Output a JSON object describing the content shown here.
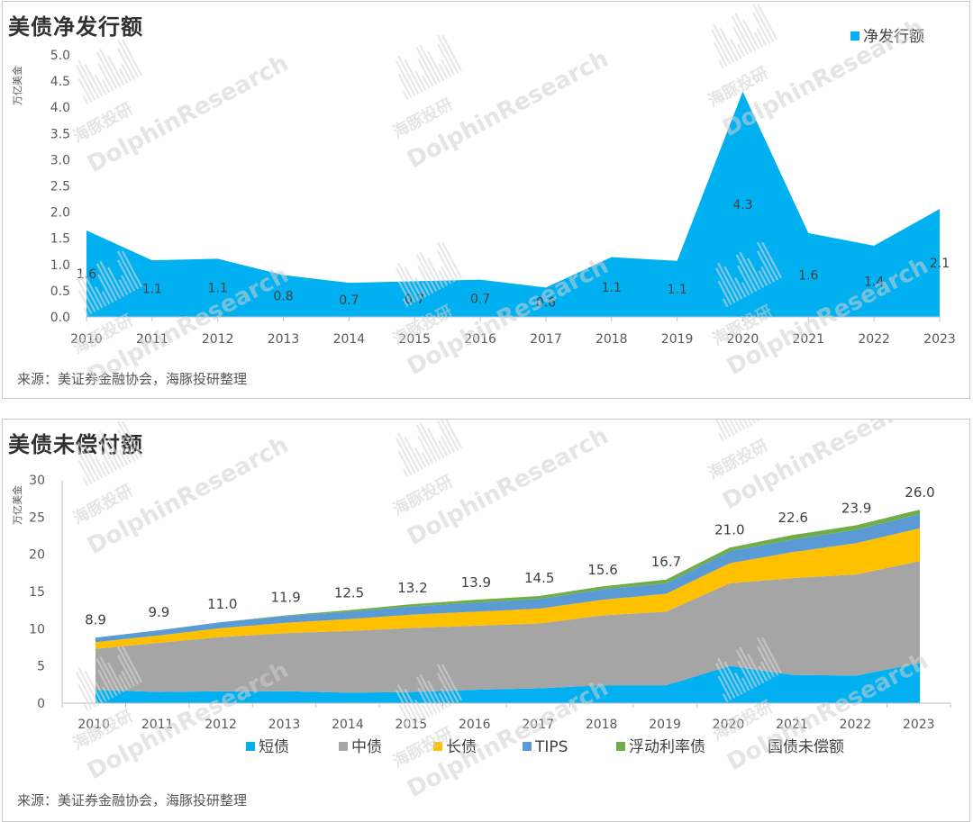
{
  "charts": [
    {
      "title": "美债净发行额",
      "source": "来源：美证券金融协会，海豚投研整理",
      "unit": "万亿美金"
    },
    {
      "title": "美债未偿付额",
      "source": "来源：美证券金融协会，海豚投研整理",
      "unit": "万亿美金"
    }
  ],
  "watermark": {
    "cn": "海豚投研",
    "en": "DolphinResearch"
  },
  "chart_data": [
    {
      "type": "area",
      "title": "美债净发行额",
      "ylabel": "万亿美金",
      "ylim": [
        0,
        5.0
      ],
      "yticks": [
        "0.0",
        "0.5",
        "1.0",
        "1.5",
        "2.0",
        "2.5",
        "3.0",
        "3.5",
        "4.0",
        "4.5",
        "5.0"
      ],
      "categories": [
        "2010",
        "2011",
        "2012",
        "2013",
        "2014",
        "2015",
        "2016",
        "2017",
        "2018",
        "2019",
        "2020",
        "2021",
        "2022",
        "2023"
      ],
      "legend_position": "top-right",
      "series": [
        {
          "name": "净发行额",
          "color": "#00b0f0",
          "values": [
            1.65,
            1.08,
            1.11,
            0.8,
            0.65,
            0.68,
            0.71,
            0.56,
            1.14,
            1.07,
            4.3,
            1.6,
            1.36,
            2.06
          ],
          "labels": [
            "1.6",
            "1.1",
            "1.1",
            "0.8",
            "0.7",
            "0.7",
            "0.7",
            "0.6",
            "1.1",
            "1.1",
            "4.3",
            "1.6",
            "1.4",
            "2.1"
          ]
        }
      ]
    },
    {
      "type": "area",
      "stacked": true,
      "title": "美债未偿付额",
      "ylabel": "万亿美金",
      "ylim": [
        0,
        30
      ],
      "yticks": [
        "0",
        "5",
        "10",
        "15",
        "20",
        "25",
        "30"
      ],
      "categories": [
        "2010",
        "2011",
        "2012",
        "2013",
        "2014",
        "2015",
        "2016",
        "2017",
        "2018",
        "2019",
        "2020",
        "2021",
        "2022",
        "2023"
      ],
      "legend_position": "bottom",
      "series": [
        {
          "name": "短债",
          "color": "#00b0f0",
          "values": [
            1.8,
            1.5,
            1.6,
            1.6,
            1.4,
            1.5,
            1.8,
            2.0,
            2.4,
            2.4,
            5.0,
            3.8,
            3.7,
            5.4
          ]
        },
        {
          "name": "中债",
          "color": "#a5a5a5",
          "values": [
            5.5,
            6.6,
            7.3,
            7.8,
            8.3,
            8.6,
            8.6,
            8.7,
            9.4,
            9.9,
            11.1,
            13.0,
            13.6,
            13.7
          ]
        },
        {
          "name": "长债",
          "color": "#ffc000",
          "values": [
            0.9,
            1.0,
            1.2,
            1.4,
            1.6,
            1.8,
            1.9,
            2.0,
            2.1,
            2.4,
            2.7,
            3.5,
            4.2,
            4.4
          ]
        },
        {
          "name": "TIPS",
          "color": "#5b9bd5",
          "values": [
            0.6,
            0.7,
            0.8,
            0.9,
            1.0,
            1.1,
            1.2,
            1.3,
            1.4,
            1.4,
            1.6,
            1.7,
            1.8,
            1.9
          ]
        },
        {
          "name": "浮动利率债",
          "color": "#70ad47",
          "values": [
            0.0,
            0.0,
            0.0,
            0.1,
            0.2,
            0.3,
            0.4,
            0.4,
            0.4,
            0.5,
            0.5,
            0.6,
            0.6,
            0.6
          ]
        }
      ],
      "total": {
        "name": "国债未偿额",
        "values": [
          8.9,
          9.9,
          11.0,
          11.9,
          12.5,
          13.2,
          13.9,
          14.5,
          15.6,
          16.7,
          21.0,
          22.6,
          23.9,
          26.0
        ],
        "labels": [
          "8.9",
          "9.9",
          "11.0",
          "11.9",
          "12.5",
          "13.2",
          "13.9",
          "14.5",
          "15.6",
          "16.7",
          "21.0",
          "22.6",
          "23.9",
          "26.0"
        ]
      }
    }
  ]
}
